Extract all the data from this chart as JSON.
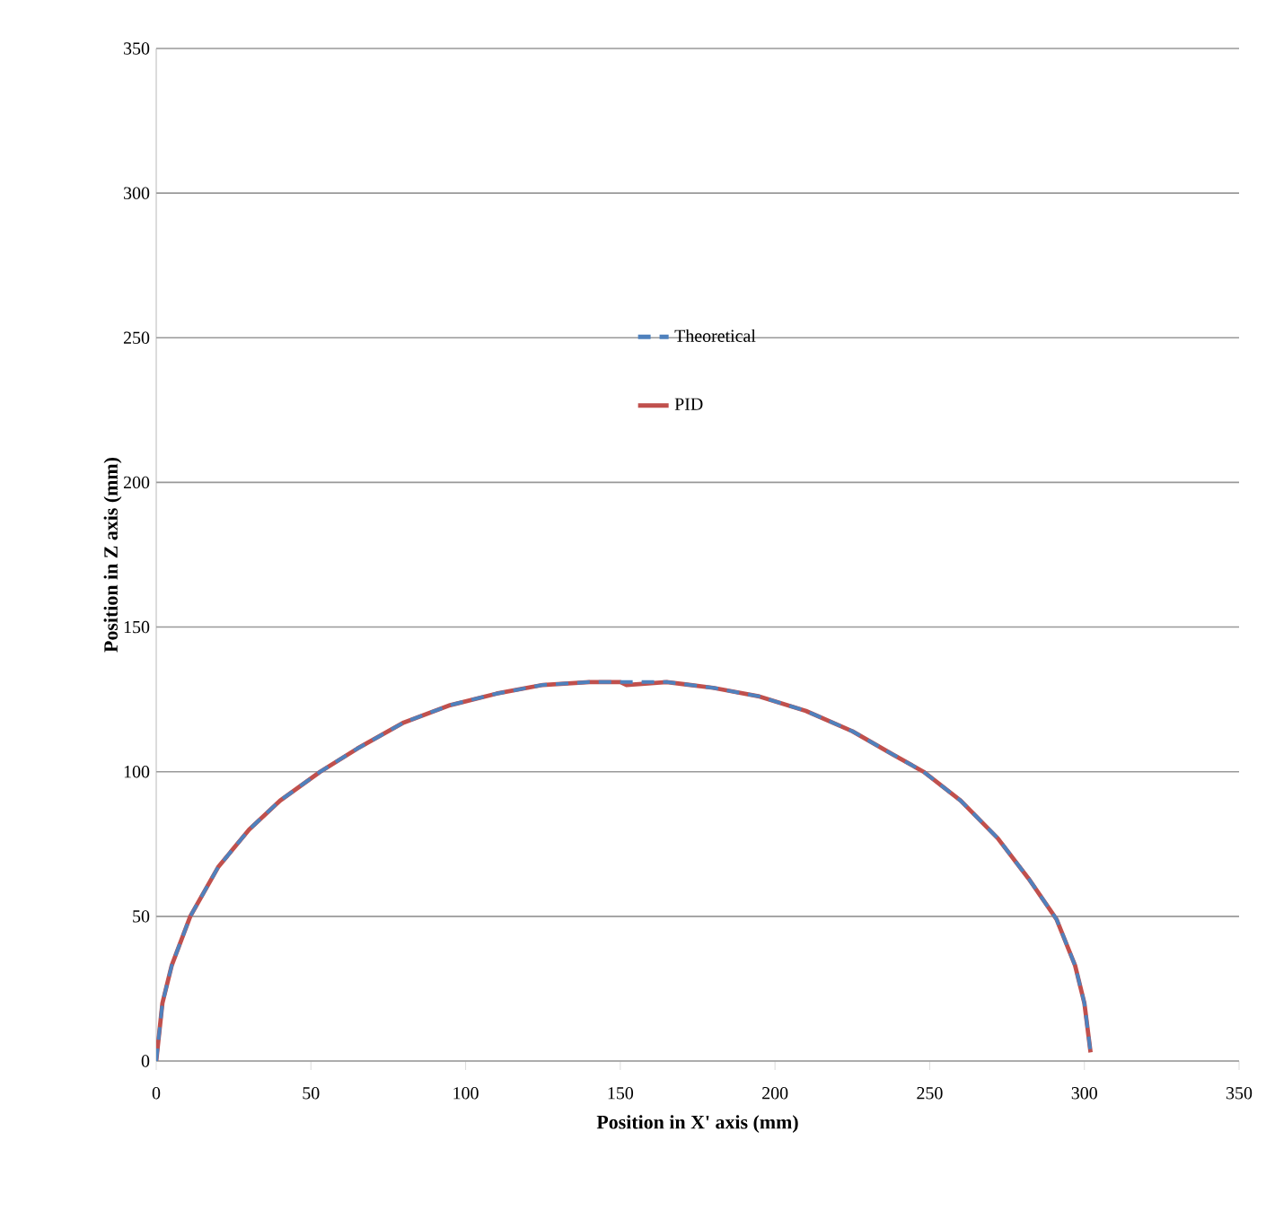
{
  "chart_data": {
    "type": "line",
    "xlabel": "Position in X' axis (mm)",
    "ylabel": "Position in Z axis (mm)",
    "xlim": [
      0,
      350
    ],
    "ylim": [
      0,
      350
    ],
    "xticks": [
      0,
      50,
      100,
      150,
      200,
      250,
      300,
      350
    ],
    "yticks": [
      0,
      50,
      100,
      150,
      200,
      250,
      300,
      350
    ],
    "grid": "y",
    "legend": "top",
    "marker": "none",
    "series": [
      {
        "name": "Theoretical",
        "color": "#4f81bd",
        "line_style": "dashed",
        "x": [
          0,
          2,
          5,
          11,
          20,
          30,
          40,
          53,
          65,
          80,
          95,
          110,
          125,
          140,
          150,
          152,
          165,
          180,
          195,
          210,
          225,
          238,
          248,
          260,
          272,
          282,
          291,
          297,
          300,
          302
        ],
        "values": [
          0,
          20,
          33,
          50,
          67,
          80,
          90,
          100,
          108,
          117,
          123,
          127,
          130,
          131,
          131,
          131,
          131,
          129,
          126,
          121,
          114,
          106,
          100,
          90,
          77,
          63,
          49,
          33,
          20,
          3
        ]
      },
      {
        "name": "PID",
        "color": "#c0504d",
        "line_style": "solid",
        "x": [
          0,
          2,
          5,
          11,
          20,
          30,
          40,
          53,
          65,
          80,
          95,
          110,
          125,
          140,
          150,
          152,
          165,
          180,
          195,
          210,
          225,
          238,
          248,
          260,
          272,
          282,
          291,
          297,
          300,
          302
        ],
        "values": [
          0,
          20,
          33,
          50,
          67,
          80,
          90,
          100,
          108,
          117,
          123,
          127,
          130,
          131,
          131,
          130,
          131,
          129,
          126,
          121,
          114,
          106,
          100,
          90,
          77,
          63,
          49,
          33,
          20,
          3
        ]
      }
    ]
  }
}
